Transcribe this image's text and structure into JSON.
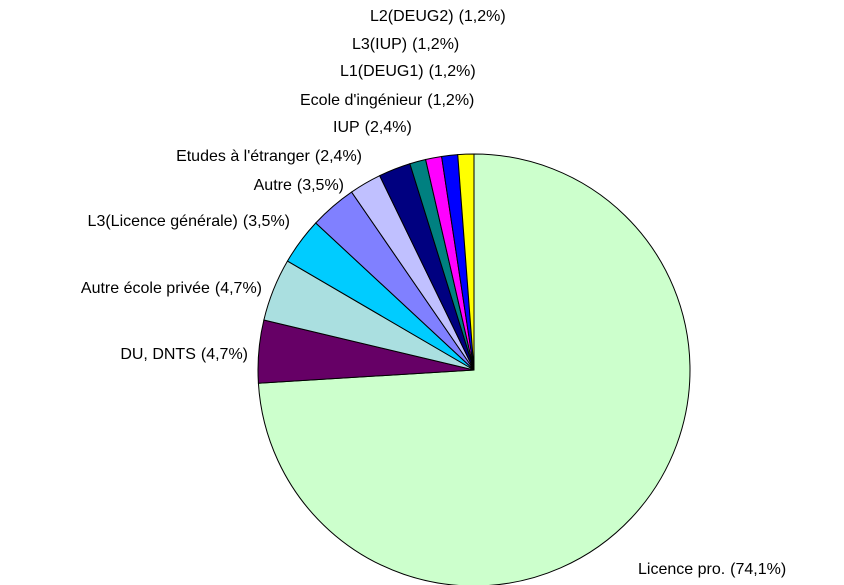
{
  "chart_data": {
    "type": "pie",
    "categories": [
      "Licence pro.",
      "DU, DNTS",
      "Autre école privée",
      "L3(Licence générale)",
      "Autre",
      "Etudes à l'étranger",
      "IUP",
      "Ecole d'ingénieur",
      "L1(DEUG1)",
      "L3(IUP)",
      "L2(DEUG2)"
    ],
    "values": [
      74.1,
      4.7,
      4.7,
      3.5,
      3.5,
      2.4,
      2.4,
      1.2,
      1.2,
      1.2,
      1.2
    ],
    "value_labels": [
      "(74,1%)",
      "(4,7%)",
      "(4,7%)",
      "(3,5%)",
      "(3,5%)",
      "(2,4%)",
      "(2,4%)",
      "(1,2%)",
      "(1,2%)",
      "(1,2%)",
      "(1,2%)"
    ],
    "colors": [
      "#ccffcc",
      "#660066",
      "#aadfe0",
      "#00ccff",
      "#8080ff",
      "#c0c0ff",
      "#000080",
      "#008080",
      "#ff00ff",
      "#0000ff",
      "#ffff00"
    ]
  }
}
